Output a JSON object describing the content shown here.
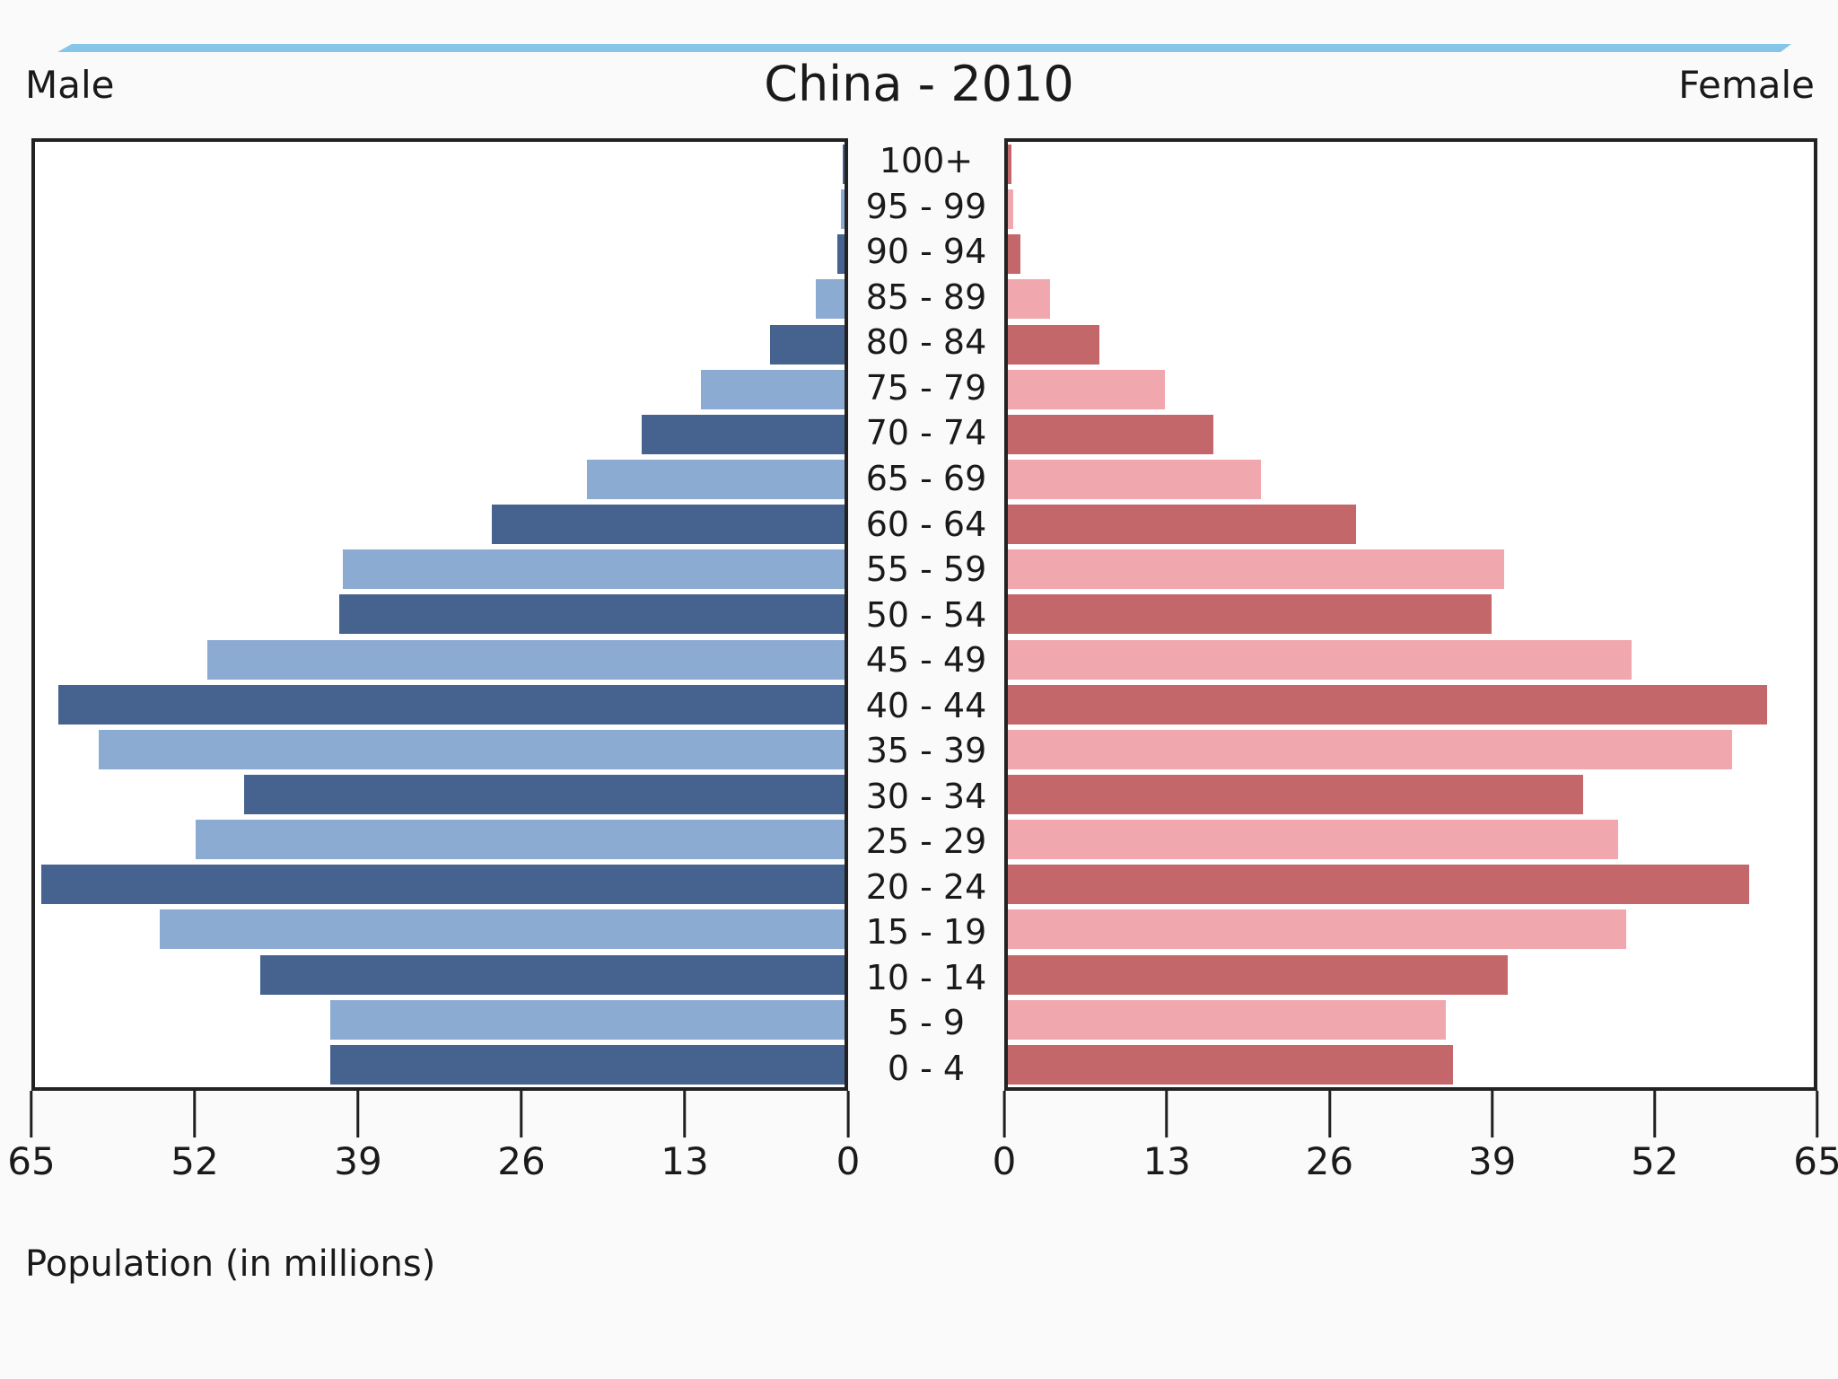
{
  "header": {
    "male_label": "Male",
    "title": "China - 2010",
    "female_label": "Female"
  },
  "footer": {
    "xlabel": "Population (in millions)"
  },
  "chart_data": {
    "type": "bar",
    "subtype": "population-pyramid",
    "title": "China - 2010",
    "xlabel": "Population (in millions)",
    "categories_order": "top-to-bottom",
    "categories": [
      "100+",
      "95 - 99",
      "90 - 94",
      "85 - 89",
      "80 - 84",
      "75 - 79",
      "70 - 74",
      "65 - 69",
      "60 - 64",
      "55 - 59",
      "50 - 54",
      "45 - 49",
      "40 - 44",
      "35 - 39",
      "30 - 34",
      "25 - 29",
      "20 - 24",
      "15 - 19",
      "10 - 14",
      "5 - 9",
      "0 - 4"
    ],
    "series": [
      {
        "name": "Male",
        "side": "left",
        "values": [
          0.1,
          0.3,
          0.6,
          2.3,
          6.0,
          11.5,
          16.3,
          20.7,
          28.3,
          40.3,
          40.6,
          51.2,
          63.1,
          59.9,
          48.2,
          52.1,
          64.5,
          55.0,
          46.9,
          41.3,
          41.3
        ]
      },
      {
        "name": "Female",
        "side": "right",
        "values": [
          0.3,
          0.4,
          1.0,
          3.4,
          7.4,
          12.7,
          16.6,
          20.4,
          28.1,
          40.0,
          39.0,
          50.3,
          61.2,
          58.4,
          46.4,
          49.2,
          59.8,
          49.9,
          40.3,
          35.3,
          35.9
        ]
      }
    ],
    "axis_max": 65,
    "xlim": [
      0,
      65
    ],
    "left_axis_ticks": [
      65,
      52,
      39,
      26,
      13,
      0
    ],
    "right_axis_ticks": [
      0,
      13,
      26,
      39,
      52,
      65
    ],
    "grid": false,
    "legend": "none",
    "row_shades_top_to_bottom": [
      "dark",
      "light",
      "dark",
      "light",
      "dark",
      "light",
      "dark",
      "light",
      "dark",
      "light",
      "dark",
      "light",
      "dark",
      "light",
      "dark",
      "light",
      "dark",
      "light",
      "dark",
      "light",
      "dark"
    ],
    "colors": {
      "male_dark": "#466390",
      "male_light": "#8cabd3",
      "female_dark": "#c4676b",
      "female_light": "#f0a8ae",
      "accent_line": "#84c5e9",
      "frame": "#222222",
      "text": "#1a1a1a"
    }
  }
}
